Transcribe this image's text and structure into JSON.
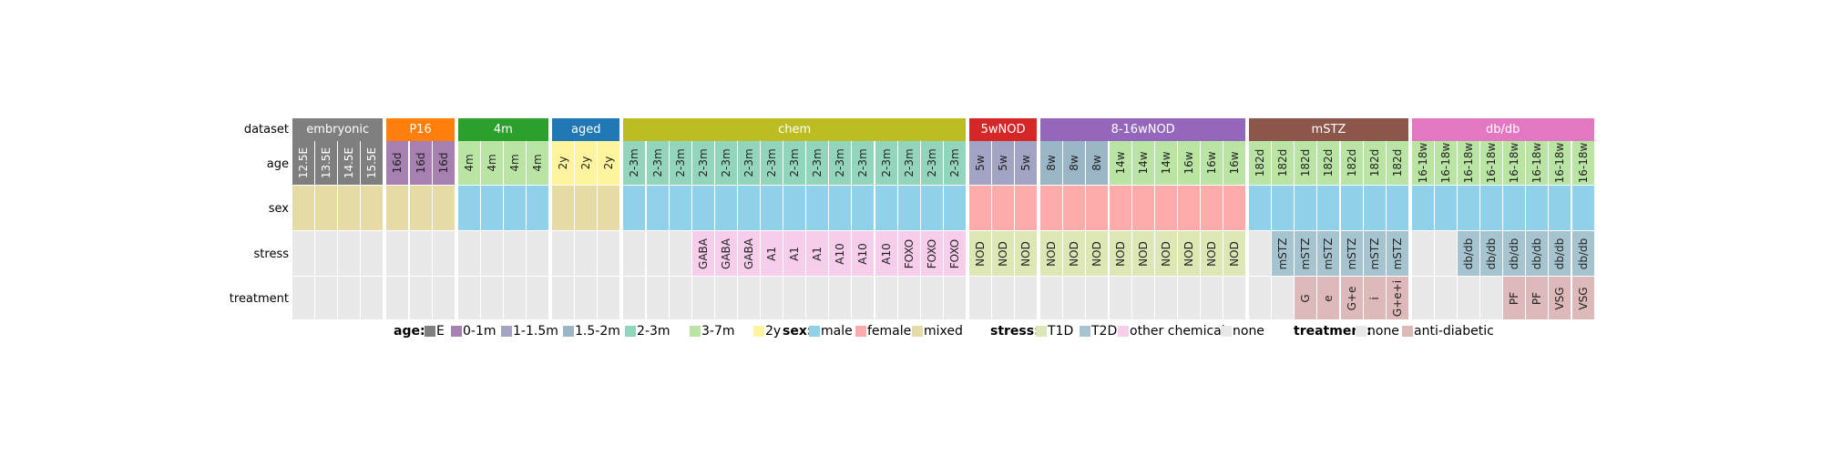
{
  "row_labels": [
    "dataset",
    "age",
    "sex",
    "stress",
    "treatment"
  ],
  "groups": [
    {
      "name": "embryonic",
      "color": "#7f7f7f",
      "count": 4
    },
    {
      "name": "P16",
      "color": "#ff7f0e",
      "count": 3
    },
    {
      "name": "4m",
      "color": "#2ca02c",
      "count": 4
    },
    {
      "name": "aged",
      "color": "#1f77b4",
      "count": 3
    },
    {
      "name": "chem",
      "color": "#bcbd22",
      "count": 15
    },
    {
      "name": "5wNOD",
      "color": "#d62728",
      "count": 3
    },
    {
      "name": "8-16wNOD",
      "color": "#9467bd",
      "count": 9
    },
    {
      "name": "mSTZ",
      "color": "#8c564b",
      "count": 7
    },
    {
      "name": "db/db",
      "color": "#e377c2",
      "count": 8
    }
  ],
  "columns": [
    {
      "age": "12.5E",
      "age_cat": "E",
      "sex": "mixed",
      "stress": "",
      "stress_cat": "none",
      "treatment": "",
      "treatment_cat": "none"
    },
    {
      "age": "13.5E",
      "age_cat": "E",
      "sex": "mixed",
      "stress": "",
      "stress_cat": "none",
      "treatment": "",
      "treatment_cat": "none"
    },
    {
      "age": "14.5E",
      "age_cat": "E",
      "sex": "mixed",
      "stress": "",
      "stress_cat": "none",
      "treatment": "",
      "treatment_cat": "none"
    },
    {
      "age": "15.5E",
      "age_cat": "E",
      "sex": "mixed",
      "stress": "",
      "stress_cat": "none",
      "treatment": "",
      "treatment_cat": "none"
    },
    {
      "age": "16d",
      "age_cat": "0-1m",
      "sex": "mixed",
      "stress": "",
      "stress_cat": "none",
      "treatment": "",
      "treatment_cat": "none"
    },
    {
      "age": "16d",
      "age_cat": "0-1m",
      "sex": "mixed",
      "stress": "",
      "stress_cat": "none",
      "treatment": "",
      "treatment_cat": "none"
    },
    {
      "age": "16d",
      "age_cat": "0-1m",
      "sex": "mixed",
      "stress": "",
      "stress_cat": "none",
      "treatment": "",
      "treatment_cat": "none"
    },
    {
      "age": "4m",
      "age_cat": "3-7m",
      "sex": "male",
      "stress": "",
      "stress_cat": "none",
      "treatment": "",
      "treatment_cat": "none"
    },
    {
      "age": "4m",
      "age_cat": "3-7m",
      "sex": "male",
      "stress": "",
      "stress_cat": "none",
      "treatment": "",
      "treatment_cat": "none"
    },
    {
      "age": "4m",
      "age_cat": "3-7m",
      "sex": "male",
      "stress": "",
      "stress_cat": "none",
      "treatment": "",
      "treatment_cat": "none"
    },
    {
      "age": "4m",
      "age_cat": "3-7m",
      "sex": "male",
      "stress": "",
      "stress_cat": "none",
      "treatment": "",
      "treatment_cat": "none"
    },
    {
      "age": "2y",
      "age_cat": "2y",
      "sex": "mixed",
      "stress": "",
      "stress_cat": "none",
      "treatment": "",
      "treatment_cat": "none"
    },
    {
      "age": "2y",
      "age_cat": "2y",
      "sex": "mixed",
      "stress": "",
      "stress_cat": "none",
      "treatment": "",
      "treatment_cat": "none"
    },
    {
      "age": "2y",
      "age_cat": "2y",
      "sex": "mixed",
      "stress": "",
      "stress_cat": "none",
      "treatment": "",
      "treatment_cat": "none"
    },
    {
      "age": "2-3m",
      "age_cat": "2-3m",
      "sex": "male",
      "stress": "",
      "stress_cat": "none",
      "treatment": "",
      "treatment_cat": "none"
    },
    {
      "age": "2-3m",
      "age_cat": "2-3m",
      "sex": "male",
      "stress": "",
      "stress_cat": "none",
      "treatment": "",
      "treatment_cat": "none"
    },
    {
      "age": "2-3m",
      "age_cat": "2-3m",
      "sex": "male",
      "stress": "",
      "stress_cat": "none",
      "treatment": "",
      "treatment_cat": "none"
    },
    {
      "age": "2-3m",
      "age_cat": "2-3m",
      "sex": "male",
      "stress": "GABA",
      "stress_cat": "other chemical",
      "treatment": "",
      "treatment_cat": "none"
    },
    {
      "age": "2-3m",
      "age_cat": "2-3m",
      "sex": "male",
      "stress": "GABA",
      "stress_cat": "other chemical",
      "treatment": "",
      "treatment_cat": "none"
    },
    {
      "age": "2-3m",
      "age_cat": "2-3m",
      "sex": "male",
      "stress": "GABA",
      "stress_cat": "other chemical",
      "treatment": "",
      "treatment_cat": "none"
    },
    {
      "age": "2-3m",
      "age_cat": "2-3m",
      "sex": "male",
      "stress": "A1",
      "stress_cat": "other chemical",
      "treatment": "",
      "treatment_cat": "none"
    },
    {
      "age": "2-3m",
      "age_cat": "2-3m",
      "sex": "male",
      "stress": "A1",
      "stress_cat": "other chemical",
      "treatment": "",
      "treatment_cat": "none"
    },
    {
      "age": "2-3m",
      "age_cat": "2-3m",
      "sex": "male",
      "stress": "A1",
      "stress_cat": "other chemical",
      "treatment": "",
      "treatment_cat": "none"
    },
    {
      "age": "2-3m",
      "age_cat": "2-3m",
      "sex": "male",
      "stress": "A10",
      "stress_cat": "other chemical",
      "treatment": "",
      "treatment_cat": "none"
    },
    {
      "age": "2-3m",
      "age_cat": "2-3m",
      "sex": "male",
      "stress": "A10",
      "stress_cat": "other chemical",
      "treatment": "",
      "treatment_cat": "none"
    },
    {
      "age": "2-3m",
      "age_cat": "2-3m",
      "sex": "male",
      "stress": "A10",
      "stress_cat": "other chemical",
      "treatment": "",
      "treatment_cat": "none"
    },
    {
      "age": "2-3m",
      "age_cat": "2-3m",
      "sex": "male",
      "stress": "FOXO",
      "stress_cat": "other chemical",
      "treatment": "",
      "treatment_cat": "none"
    },
    {
      "age": "2-3m",
      "age_cat": "2-3m",
      "sex": "male",
      "stress": "FOXO",
      "stress_cat": "other chemical",
      "treatment": "",
      "treatment_cat": "none"
    },
    {
      "age": "2-3m",
      "age_cat": "2-3m",
      "sex": "male",
      "stress": "FOXO",
      "stress_cat": "other chemical",
      "treatment": "",
      "treatment_cat": "none"
    },
    {
      "age": "5w",
      "age_cat": "1-1.5m",
      "sex": "female",
      "stress": "NOD",
      "stress_cat": "T1D",
      "treatment": "",
      "treatment_cat": "none"
    },
    {
      "age": "5w",
      "age_cat": "1-1.5m",
      "sex": "female",
      "stress": "NOD",
      "stress_cat": "T1D",
      "treatment": "",
      "treatment_cat": "none"
    },
    {
      "age": "5w",
      "age_cat": "1-1.5m",
      "sex": "female",
      "stress": "NOD",
      "stress_cat": "T1D",
      "treatment": "",
      "treatment_cat": "none"
    },
    {
      "age": "8w",
      "age_cat": "1.5-2m",
      "sex": "female",
      "stress": "NOD",
      "stress_cat": "T1D",
      "treatment": "",
      "treatment_cat": "none"
    },
    {
      "age": "8w",
      "age_cat": "1.5-2m",
      "sex": "female",
      "stress": "NOD",
      "stress_cat": "T1D",
      "treatment": "",
      "treatment_cat": "none"
    },
    {
      "age": "8w",
      "age_cat": "1.5-2m",
      "sex": "female",
      "stress": "NOD",
      "stress_cat": "T1D",
      "treatment": "",
      "treatment_cat": "none"
    },
    {
      "age": "14w",
      "age_cat": "3-7m",
      "sex": "female",
      "stress": "NOD",
      "stress_cat": "T1D",
      "treatment": "",
      "treatment_cat": "none"
    },
    {
      "age": "14w",
      "age_cat": "3-7m",
      "sex": "female",
      "stress": "NOD",
      "stress_cat": "T1D",
      "treatment": "",
      "treatment_cat": "none"
    },
    {
      "age": "14w",
      "age_cat": "3-7m",
      "sex": "female",
      "stress": "NOD",
      "stress_cat": "T1D",
      "treatment": "",
      "treatment_cat": "none"
    },
    {
      "age": "16w",
      "age_cat": "3-7m",
      "sex": "female",
      "stress": "NOD",
      "stress_cat": "T1D",
      "treatment": "",
      "treatment_cat": "none"
    },
    {
      "age": "16w",
      "age_cat": "3-7m",
      "sex": "female",
      "stress": "NOD",
      "stress_cat": "T1D",
      "treatment": "",
      "treatment_cat": "none"
    },
    {
      "age": "16w",
      "age_cat": "3-7m",
      "sex": "female",
      "stress": "NOD",
      "stress_cat": "T1D",
      "treatment": "",
      "treatment_cat": "none"
    },
    {
      "age": "182d",
      "age_cat": "3-7m",
      "sex": "male",
      "stress": "",
      "stress_cat": "none",
      "treatment": "",
      "treatment_cat": "none"
    },
    {
      "age": "182d",
      "age_cat": "3-7m",
      "sex": "male",
      "stress": "mSTZ",
      "stress_cat": "T2D",
      "treatment": "",
      "treatment_cat": "none"
    },
    {
      "age": "182d",
      "age_cat": "3-7m",
      "sex": "male",
      "stress": "mSTZ",
      "stress_cat": "T2D",
      "treatment": "G",
      "treatment_cat": "anti-diabetic"
    },
    {
      "age": "182d",
      "age_cat": "3-7m",
      "sex": "male",
      "stress": "mSTZ",
      "stress_cat": "T2D",
      "treatment": "e",
      "treatment_cat": "anti-diabetic"
    },
    {
      "age": "182d",
      "age_cat": "3-7m",
      "sex": "male",
      "stress": "mSTZ",
      "stress_cat": "T2D",
      "treatment": "G+e",
      "treatment_cat": "anti-diabetic"
    },
    {
      "age": "182d",
      "age_cat": "3-7m",
      "sex": "male",
      "stress": "mSTZ",
      "stress_cat": "T2D",
      "treatment": "i",
      "treatment_cat": "anti-diabetic"
    },
    {
      "age": "182d",
      "age_cat": "3-7m",
      "sex": "male",
      "stress": "mSTZ",
      "stress_cat": "T2D",
      "treatment": "G+e+i",
      "treatment_cat": "anti-diabetic"
    },
    {
      "age": "16-18w",
      "age_cat": "3-7m",
      "sex": "male",
      "stress": "",
      "stress_cat": "none",
      "treatment": "",
      "treatment_cat": "none"
    },
    {
      "age": "16-18w",
      "age_cat": "3-7m",
      "sex": "male",
      "stress": "",
      "stress_cat": "none",
      "treatment": "",
      "treatment_cat": "none"
    },
    {
      "age": "16-18w",
      "age_cat": "3-7m",
      "sex": "male",
      "stress": "db/db",
      "stress_cat": "T2D",
      "treatment": "",
      "treatment_cat": "none"
    },
    {
      "age": "16-18w",
      "age_cat": "3-7m",
      "sex": "male",
      "stress": "db/db",
      "stress_cat": "T2D",
      "treatment": "",
      "treatment_cat": "none"
    },
    {
      "age": "16-18w",
      "age_cat": "3-7m",
      "sex": "male",
      "stress": "db/db",
      "stress_cat": "T2D",
      "treatment": "PF",
      "treatment_cat": "anti-diabetic"
    },
    {
      "age": "16-18w",
      "age_cat": "3-7m",
      "sex": "male",
      "stress": "db/db",
      "stress_cat": "T2D",
      "treatment": "PF",
      "treatment_cat": "anti-diabetic"
    },
    {
      "age": "16-18w",
      "age_cat": "3-7m",
      "sex": "male",
      "stress": "db/db",
      "stress_cat": "T2D",
      "treatment": "VSG",
      "treatment_cat": "anti-diabetic"
    },
    {
      "age": "16-18w",
      "age_cat": "3-7m",
      "sex": "male",
      "stress": "db/db",
      "stress_cat": "T2D",
      "treatment": "VSG",
      "treatment_cat": "anti-diabetic"
    }
  ],
  "colors": {
    "age": {
      "E": "#7f7f7f",
      "0-1m": "#a680b0",
      "1-1.5m": "#a3a3c4",
      "1.5-2m": "#99b5c6",
      "2-3m": "#93d4bc",
      "3-7m": "#b9e4a3",
      "2y": "#fdf49d"
    },
    "sex": {
      "male": "#8fd0ea",
      "female": "#fcaaaa",
      "mixed": "#e6dba5"
    },
    "stress": {
      "T1D": "#dbe8b5",
      "T2D": "#a6c4d0",
      "other chemical": "#f6cdeb",
      "none": "#e8e8e8"
    },
    "treatment": {
      "none": "#e8e8e8",
      "anti-diabetic": "#deb9b9"
    }
  },
  "legend": [
    {
      "title": "age:",
      "key": "age",
      "items": [
        "E",
        "0-1m",
        "1-1.5m",
        "1.5-2m",
        "2-3m",
        "3-7m",
        "2y"
      ]
    },
    {
      "title": "sex:",
      "key": "sex",
      "items": [
        "male",
        "female",
        "mixed"
      ]
    },
    {
      "title": "stress:",
      "key": "stress",
      "items": [
        "T1D",
        "T2D",
        "other chemical",
        "none"
      ]
    },
    {
      "title": "treatment:",
      "key": "treatment",
      "items": [
        "none",
        "anti-diabetic"
      ]
    }
  ]
}
